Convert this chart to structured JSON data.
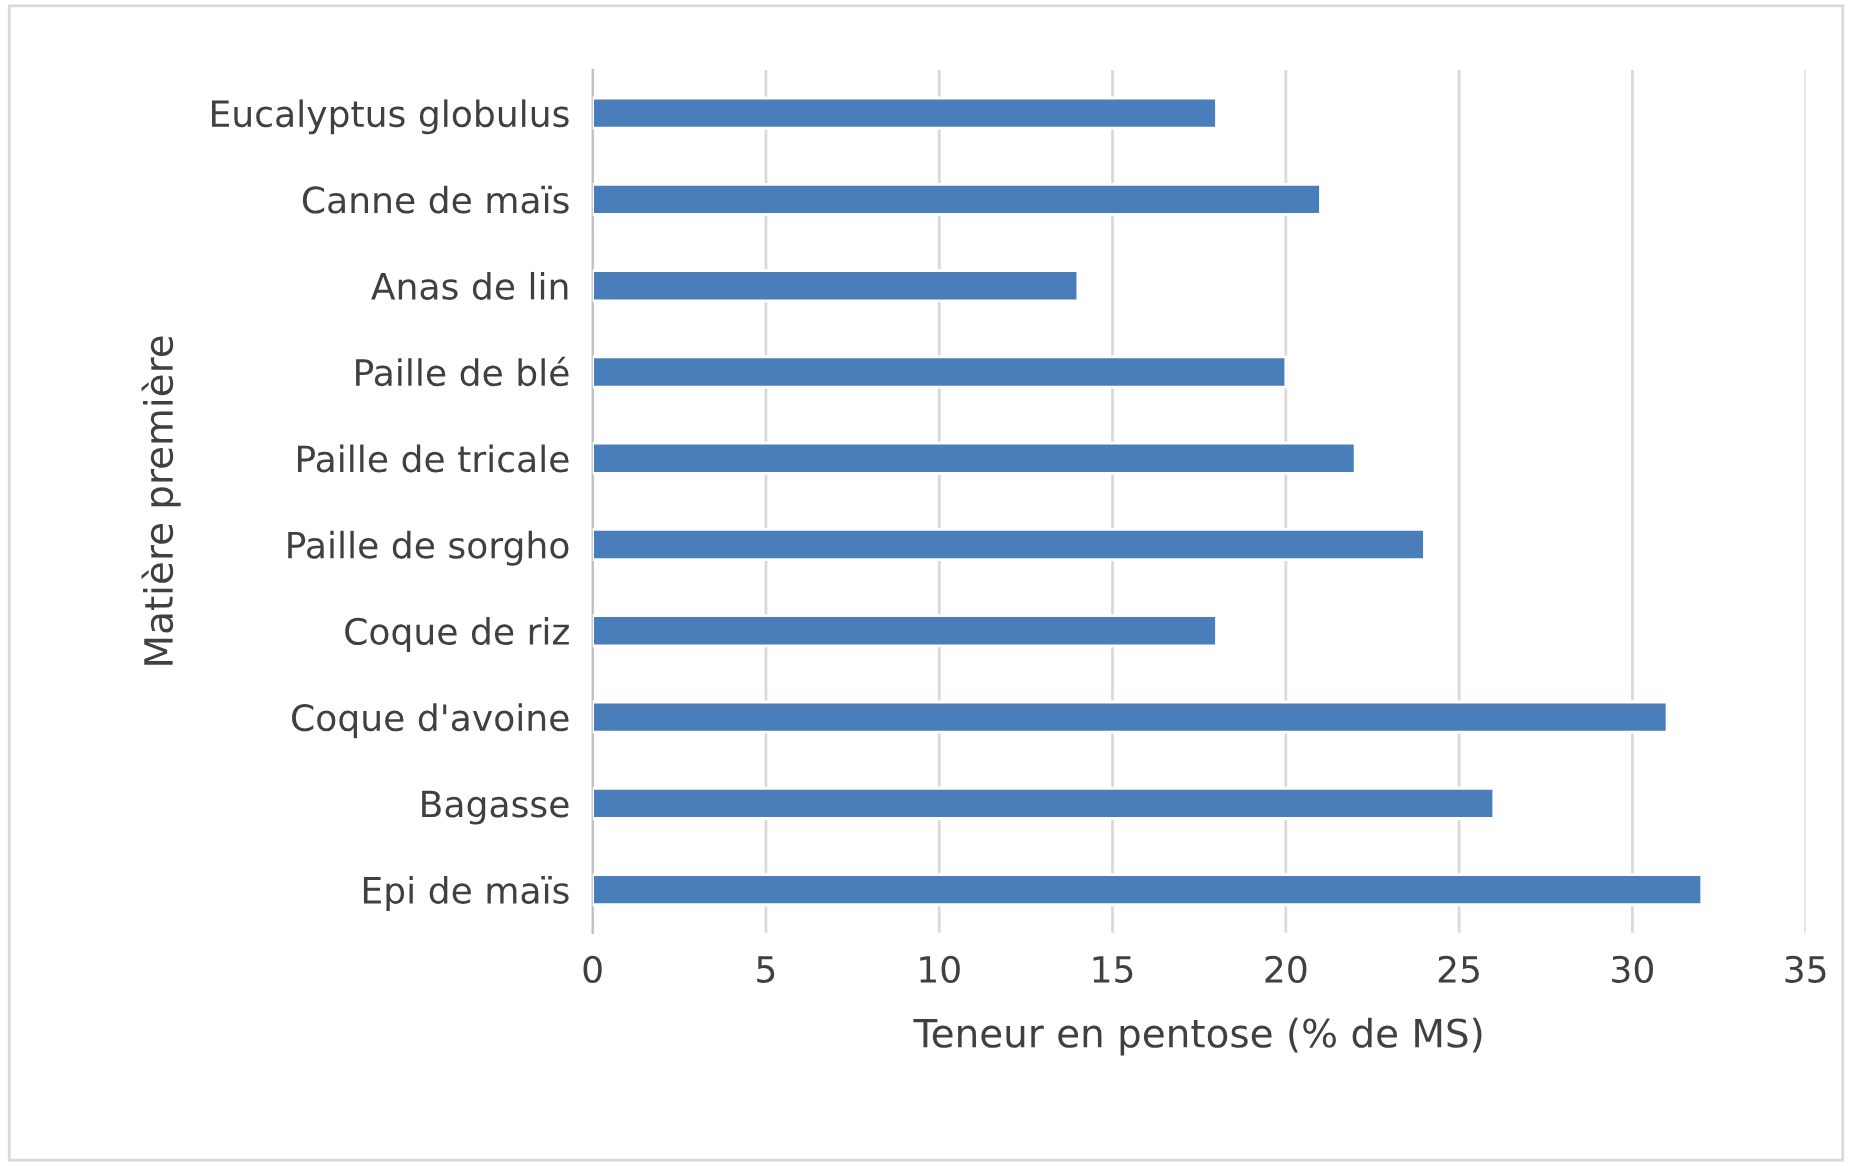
{
  "chart_data": {
    "type": "bar",
    "orientation": "horizontal",
    "xlabel": "Teneur en pentose (% de MS)",
    "ylabel": "Matière première",
    "categories": [
      "Eucalyptus globulus",
      "Canne de maïs",
      "Anas de lin",
      "Paille de blé",
      "Paille de tricale",
      "Paille de sorgho",
      "Coque de riz",
      "Coque d'avoine",
      "Bagasse",
      "Epi de maïs"
    ],
    "values": [
      18,
      21,
      14,
      20,
      22,
      24,
      18,
      31,
      26,
      32
    ],
    "color": "#4a7ebb",
    "xlim": [
      0,
      35
    ],
    "xticks": [
      0,
      5,
      10,
      15,
      20,
      25,
      30,
      35
    ],
    "grid": "x",
    "legend": false
  }
}
